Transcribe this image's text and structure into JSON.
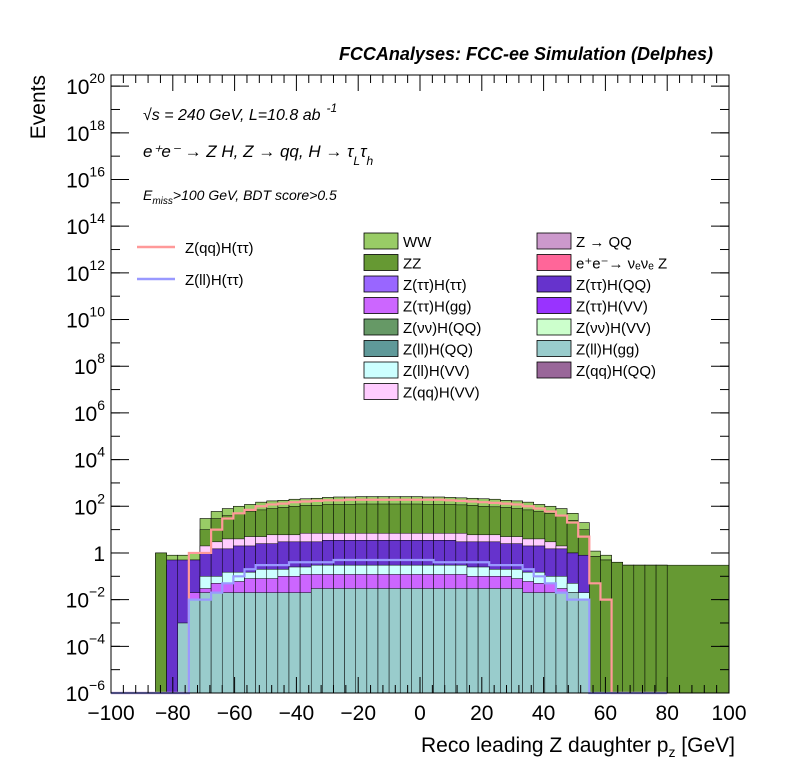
{
  "title": "FCCAnalyses: FCC-ee Simulation (Delphes)",
  "annotations": {
    "line1": "√s = 240 GeV, L=10.8 ab",
    "line1_sup": "-1",
    "line2": "e⁺e⁻ → Z H, Z → qq, H → τ",
    "line2_sub_L": "L",
    "line2_tau": "τ",
    "line2_sub_h": "h",
    "line3_E": "E",
    "line3_sub": "miss",
    "line3_rest": ">100 GeV, BDT score>0.5"
  },
  "colors": {
    "WW": "#99cc66",
    "ZZ": "#669933",
    "Ztautau_Htautau": "#9966ff",
    "Ztautau_Hgg": "#cc66ff",
    "Znunu_HQQ": "#669966",
    "Zll_HQQ": "#5f9999",
    "Zll_HVV": "#ccffff",
    "Zqq_HVV": "#ffccff",
    "ZQQ": "#cc99cc",
    "nunuZ": "#ff6699",
    "Ztautau_HQQ": "#6633cc",
    "Ztautau_HVV": "#9933ff",
    "Znunu_HVV": "#ccffcc",
    "Zll_Hgg": "#99cccc",
    "Zqq_HQQ": "#996699",
    "sig_qq": "#ff9999",
    "sig_ll": "#9999ff"
  },
  "chart_data": {
    "type": "histogram",
    "xlabel": "Reco leading Z daughter p",
    "xlabel_sub": "z",
    "xlabel_unit": " [GeV]",
    "ylabel": "Events",
    "xlim": [
      -100,
      100
    ],
    "ylim": [
      1e-06,
      3e+20
    ],
    "log_y": true,
    "x_ticks": [
      "−100",
      "−80",
      "−60",
      "−40",
      "−20",
      "0",
      "20",
      "40",
      "60",
      "80",
      "100"
    ],
    "y_ticks": [
      {
        "label": "10",
        "exp": "−6",
        "value": 1e-06
      },
      {
        "label": "10",
        "exp": "−4",
        "value": 0.0001
      },
      {
        "label": "10",
        "exp": "−2",
        "value": 0.01
      },
      {
        "label": "1",
        "exp": "",
        "value": 1
      },
      {
        "label": "10",
        "exp": "2",
        "value": 100.0
      },
      {
        "label": "10",
        "exp": "4",
        "value": 10000.0
      },
      {
        "label": "10",
        "exp": "6",
        "value": 1000000.0
      },
      {
        "label": "10",
        "exp": "8",
        "value": 100000000.0
      },
      {
        "label": "10",
        "exp": "10",
        "value": 10000000000.0
      },
      {
        "label": "10",
        "exp": "12",
        "value": 1000000000000.0
      },
      {
        "label": "10",
        "exp": "14",
        "value": 100000000000000.0
      },
      {
        "label": "10",
        "exp": "16",
        "value": 1e+16
      },
      {
        "label": "10",
        "exp": "18",
        "value": 1e+18
      },
      {
        "label": "10",
        "exp": "20",
        "value": 1e+20
      }
    ],
    "bin_edges": [
      -100,
      80
    ],
    "n_bins": 50,
    "stack_total": [
      0,
      0,
      0,
      0,
      1,
      0.8,
      0.8,
      1,
      30,
      60,
      80,
      100,
      120,
      150,
      170,
      180,
      200,
      210,
      220,
      240,
      250,
      250,
      260,
      260,
      260,
      260,
      260,
      260,
      250,
      250,
      240,
      230,
      220,
      210,
      200,
      180,
      170,
      150,
      120,
      100,
      80,
      50,
      20,
      1.2,
      0.8,
      0.4,
      0.3,
      0.3,
      0.3,
      0.3
    ],
    "components": [
      {
        "name": "Z(ll)H(gg)",
        "values": [
          0,
          0,
          0,
          0,
          0,
          0,
          0.001,
          0.01,
          0.02,
          0.02,
          0.02,
          0.02,
          0.02,
          0.02,
          0.02,
          0.02,
          0.02,
          0.02,
          0.03,
          0.03,
          0.03,
          0.03,
          0.03,
          0.03,
          0.03,
          0.03,
          0.03,
          0.03,
          0.03,
          0.03,
          0.03,
          0.03,
          0.03,
          0.03,
          0.03,
          0.03,
          0.03,
          0.02,
          0.02,
          0.02,
          0.02,
          0.02,
          0.01,
          0.001,
          0,
          0,
          0,
          0,
          0,
          0
        ]
      },
      {
        "name": "Z(ττ)H(gg)",
        "values": [
          0,
          0,
          0,
          0,
          0,
          0,
          0,
          0.02,
          0.03,
          0.05,
          0.05,
          0.06,
          0.08,
          0.08,
          0.08,
          0.1,
          0.1,
          0.12,
          0.12,
          0.12,
          0.12,
          0.12,
          0.12,
          0.12,
          0.12,
          0.12,
          0.12,
          0.12,
          0.12,
          0.12,
          0.12,
          0.12,
          0.1,
          0.1,
          0.1,
          0.1,
          0.08,
          0.06,
          0.05,
          0.05,
          0.03,
          0.02,
          0.01,
          0,
          0,
          0,
          0,
          0,
          0,
          0
        ]
      },
      {
        "name": "Z(ll)H(VV)",
        "values": [
          0,
          0,
          0,
          0,
          0,
          0,
          0,
          0,
          0.1,
          0.1,
          0.15,
          0.15,
          0.15,
          0.2,
          0.2,
          0.2,
          0.25,
          0.25,
          0.3,
          0.3,
          0.3,
          0.3,
          0.3,
          0.3,
          0.3,
          0.3,
          0.3,
          0.3,
          0.3,
          0.3,
          0.3,
          0.3,
          0.25,
          0.25,
          0.2,
          0.2,
          0.2,
          0.15,
          0.15,
          0.1,
          0.1,
          0.05,
          0.02,
          0,
          0,
          0,
          0,
          0,
          0,
          0
        ]
      },
      {
        "name": "Z(ττ)H(QQ)",
        "values": [
          0,
          0,
          0,
          0,
          0,
          0.5,
          0.5,
          0.5,
          1,
          1.5,
          1.5,
          2,
          2,
          2.5,
          2.5,
          3,
          3,
          3,
          3,
          3.5,
          3.5,
          3.5,
          3.5,
          3.5,
          3.5,
          3.5,
          3.5,
          3.5,
          3.5,
          3.5,
          3.5,
          3,
          3,
          3,
          3,
          2.5,
          2.5,
          2,
          2,
          1.5,
          1.5,
          1,
          0.8,
          0.5,
          0.3,
          0,
          0,
          0,
          0,
          0
        ]
      },
      {
        "name": "Z(qq)H(VV)",
        "values": [
          0,
          0,
          0,
          0,
          0,
          0,
          0,
          0,
          2,
          3,
          4,
          4,
          5,
          5,
          6,
          6,
          6,
          7,
          7,
          7,
          7,
          7,
          7,
          7,
          7,
          7,
          7,
          7,
          7,
          7,
          7,
          7,
          6,
          6,
          6,
          5,
          5,
          4,
          4,
          3,
          2,
          1,
          0.5,
          0,
          0,
          0,
          0,
          0,
          0,
          0
        ]
      },
      {
        "name": "ZZ",
        "values": [
          0,
          0,
          0,
          0,
          1,
          0.3,
          0.3,
          0.5,
          10,
          30,
          40,
          50,
          60,
          70,
          80,
          90,
          100,
          110,
          110,
          120,
          120,
          120,
          125,
          125,
          125,
          125,
          125,
          125,
          120,
          120,
          120,
          115,
          110,
          100,
          95,
          90,
          80,
          70,
          60,
          50,
          40,
          25,
          10,
          0.7,
          0.5,
          0.4,
          0.3,
          0.3,
          0.3,
          0.3
        ]
      }
    ],
    "signals": [
      {
        "name": "Z(qq)H(ττ)",
        "values": [
          0,
          0,
          0,
          0,
          0,
          0,
          0,
          1,
          1,
          10,
          30,
          50,
          70,
          100,
          120,
          130,
          150,
          160,
          170,
          180,
          180,
          190,
          190,
          190,
          190,
          190,
          190,
          190,
          190,
          190,
          180,
          170,
          160,
          150,
          140,
          130,
          120,
          100,
          80,
          60,
          40,
          20,
          5,
          0.05,
          0.01,
          0,
          0,
          0,
          0,
          0
        ]
      },
      {
        "name": "Z(ll)H(ττ)",
        "values": [
          0,
          0,
          0,
          0,
          0,
          0,
          0,
          0.01,
          0.01,
          0.02,
          0.05,
          0.1,
          0.2,
          0.3,
          0.3,
          0.3,
          0.4,
          0.4,
          0.4,
          0.4,
          0.5,
          0.5,
          0.5,
          0.5,
          0.5,
          0.5,
          0.5,
          0.5,
          0.5,
          0.4,
          0.4,
          0.4,
          0.4,
          0.4,
          0.3,
          0.3,
          0.3,
          0.2,
          0.1,
          0.05,
          0.02,
          0.01,
          0.01,
          0,
          0,
          0,
          0,
          0,
          0,
          0
        ]
      }
    ],
    "legend_signals": [
      "Z(qq)H(ττ)",
      "Z(ll)H(ττ)"
    ],
    "legend_col1": [
      "WW",
      "ZZ",
      "Z(ττ)H(ττ)",
      "Z(ττ)H(gg)",
      "Z(νν)H(QQ)",
      "Z(ll)H(QQ)",
      "Z(ll)H(VV)",
      "Z(qq)H(VV)"
    ],
    "legend_col2": [
      "Z → QQ",
      "e⁺e⁻→ νₑνₑ Z",
      "Z(ττ)H(QQ)",
      "Z(ττ)H(VV)",
      "Z(νν)H(VV)",
      "Z(ll)H(gg)",
      "Z(qq)H(QQ)"
    ],
    "legend_placement": "top"
  }
}
